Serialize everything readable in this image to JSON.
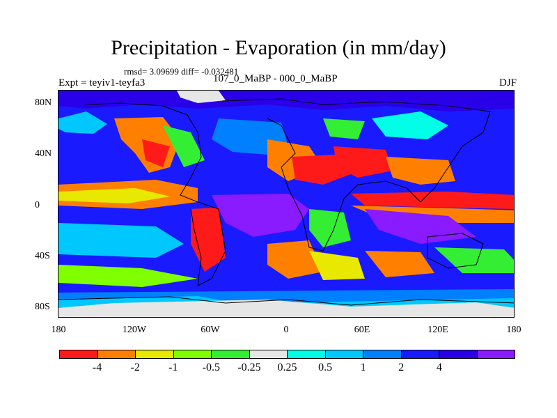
{
  "title": "Precipitation - Evaporation (in mm/day)",
  "stats": "rmsd= 3.09699 diff= -0.032481",
  "experiment": "Expt = teyiv1-teyfa3",
  "period": "107_0_MaBP - 000_0_MaBP",
  "season": "DJF",
  "lat_ticks": [
    "80N",
    "40N",
    "0",
    "40S",
    "80S"
  ],
  "lon_ticks": [
    "180",
    "120W",
    "60W",
    "0",
    "60E",
    "120E",
    "180"
  ],
  "colorbar": {
    "colors": [
      "#ff1a1a",
      "#ff8000",
      "#e8e800",
      "#80ff00",
      "#33ee33",
      "#e6e6e6",
      "#00ffe6",
      "#00c8ff",
      "#0080ff",
      "#1a1aff",
      "#2a00e8",
      "#8a1aff"
    ],
    "labels": [
      "-4",
      "-2",
      "-1",
      "-0.5",
      "-0.25",
      "0.25",
      "0.5",
      "1",
      "2",
      "4"
    ]
  }
}
